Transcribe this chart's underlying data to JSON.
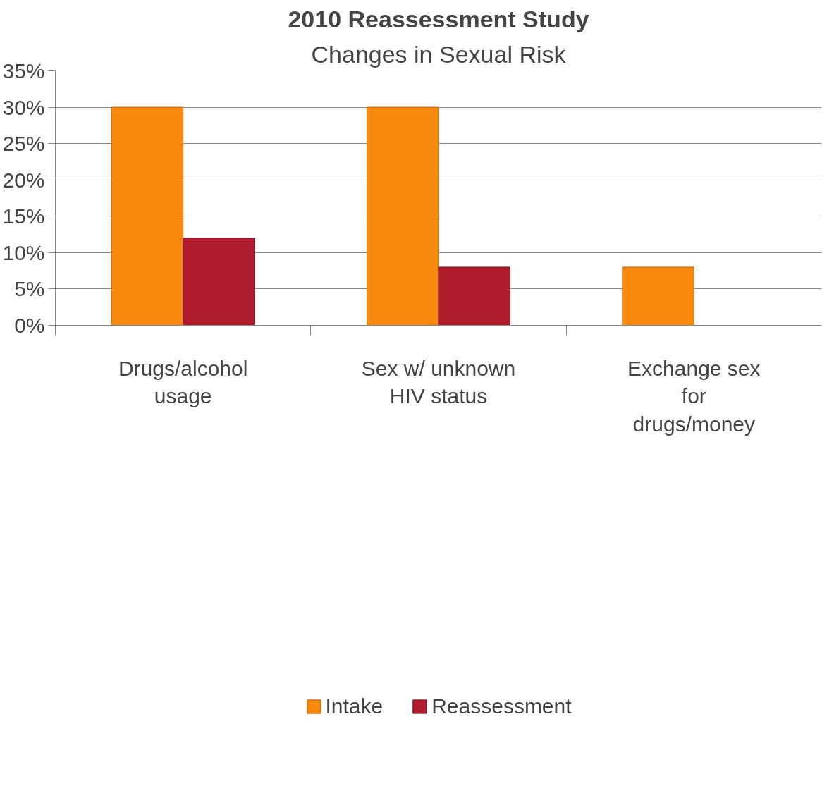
{
  "chart_data": {
    "type": "bar",
    "title": "2010 Reassessment Study",
    "subtitle": "Changes in Sexual Risk",
    "categories": [
      "Drugs/alcohol usage",
      "Sex w/ unknown HIV status",
      "Exchange sex for drugs/money"
    ],
    "series": [
      {
        "name": "Intake",
        "color": "#f7890f",
        "values": [
          30,
          30,
          8
        ]
      },
      {
        "name": "Reassessment",
        "color": "#b01c2e",
        "values": [
          12,
          8,
          null
        ]
      }
    ],
    "ylim": [
      0,
      35
    ],
    "yticks": [
      {
        "value": 0,
        "label": "0%"
      },
      {
        "value": 5,
        "label": "5%"
      },
      {
        "value": 10,
        "label": "10%"
      },
      {
        "value": 15,
        "label": "15%"
      },
      {
        "value": 20,
        "label": "20%"
      },
      {
        "value": 25,
        "label": "25%"
      },
      {
        "value": 30,
        "label": "30%"
      },
      {
        "value": 35,
        "label": "35%"
      }
    ],
    "grid": "y",
    "legend": "bottom"
  }
}
